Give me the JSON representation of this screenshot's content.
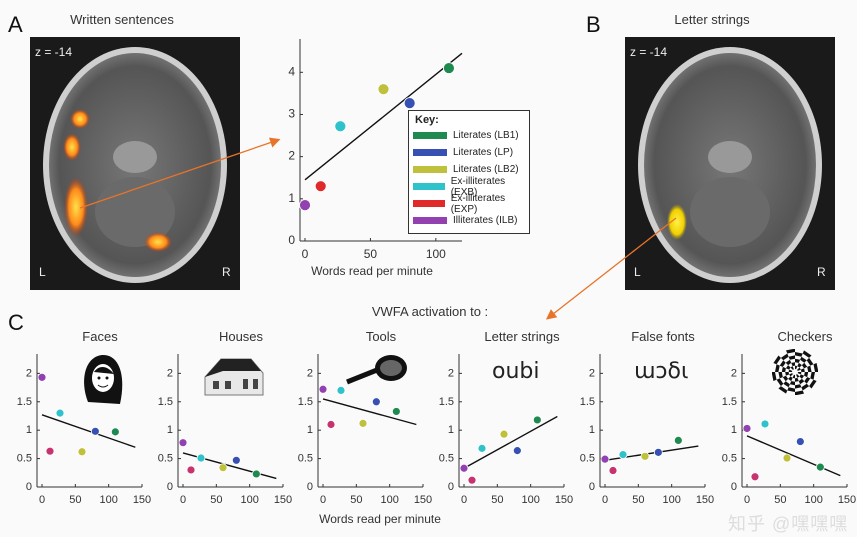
{
  "labels": {
    "a": "A",
    "b": "B",
    "c": "C"
  },
  "panel_a": {
    "title": "Written sentences",
    "slice": "z = -14",
    "left": "L",
    "right": "R"
  },
  "panel_b": {
    "title": "Letter strings",
    "slice": "z = -14",
    "left": "L",
    "right": "R"
  },
  "panel_c": {
    "title": "VWFA activation to :",
    "xlabel": "Words read per minute"
  },
  "colors": {
    "LB1": "#1f8a4f",
    "LP": "#3651b3",
    "LB2": "#bfc03c",
    "EXB": "#2fc2cb",
    "EXP": "#e02a2a",
    "ILB": "#9340b0",
    "EXP_small": "#c8326e"
  },
  "key": {
    "title": "Key:",
    "items": [
      {
        "id": "LB1",
        "label": "Literates (LB1)"
      },
      {
        "id": "LP",
        "label": "Literates (LP)"
      },
      {
        "id": "LB2",
        "label": "Literates (LB2)"
      },
      {
        "id": "EXB",
        "label": "Ex-illiterates (EXB)"
      },
      {
        "id": "EXP",
        "label": "Ex-illiterates (EXP)"
      },
      {
        "id": "ILB",
        "label": "Illiterates (ILB)"
      }
    ]
  },
  "stimulus_icons": {
    "letter_strings": "oubi",
    "false_fonts": "ɯɔδι"
  },
  "watermark": "知乎 @嘿嘿嘿",
  "chart_data": [
    {
      "type": "scatter",
      "id": "main",
      "xlabel": "Words read per minute",
      "ylabel": "",
      "xlim": [
        0,
        120
      ],
      "ylim": [
        0,
        4.6
      ],
      "xticks": [
        0,
        50,
        100
      ],
      "yticks": [
        0,
        1,
        2,
        3,
        4
      ],
      "points": [
        {
          "group": "ILB",
          "x": 0,
          "y": 0.85
        },
        {
          "group": "EXP",
          "x": 12,
          "y": 1.3
        },
        {
          "group": "EXB",
          "x": 27,
          "y": 2.72
        },
        {
          "group": "LB2",
          "x": 60,
          "y": 3.6
        },
        {
          "group": "LP",
          "x": 80,
          "y": 3.27
        },
        {
          "group": "LB1",
          "x": 110,
          "y": 4.1
        }
      ],
      "fit": [
        [
          0,
          1.45
        ],
        [
          120,
          4.45
        ]
      ]
    },
    {
      "type": "scatter",
      "id": "faces",
      "title": "Faces",
      "xlim": [
        0,
        150
      ],
      "ylim": [
        0,
        2.2
      ],
      "xticks": [
        0,
        50,
        100,
        150
      ],
      "yticks": [
        0,
        0.5,
        1,
        1.5,
        2
      ],
      "points": [
        {
          "group": "ILB",
          "x": 0,
          "y": 1.93
        },
        {
          "group": "EXP",
          "x": 12,
          "y": 0.63
        },
        {
          "group": "EXB",
          "x": 27,
          "y": 1.3
        },
        {
          "group": "LB2",
          "x": 60,
          "y": 0.62
        },
        {
          "group": "LP",
          "x": 80,
          "y": 0.98
        },
        {
          "group": "LB1",
          "x": 110,
          "y": 0.97
        }
      ],
      "fit": [
        [
          0,
          1.27
        ],
        [
          140,
          0.7
        ]
      ]
    },
    {
      "type": "scatter",
      "id": "houses",
      "title": "Houses",
      "xlim": [
        0,
        150
      ],
      "ylim": [
        0,
        2.2
      ],
      "xticks": [
        0,
        50,
        100,
        150
      ],
      "yticks": [
        0,
        0.5,
        1,
        1.5,
        2
      ],
      "points": [
        {
          "group": "ILB",
          "x": 0,
          "y": 0.78
        },
        {
          "group": "EXP",
          "x": 12,
          "y": 0.3
        },
        {
          "group": "EXB",
          "x": 27,
          "y": 0.51
        },
        {
          "group": "LB2",
          "x": 60,
          "y": 0.34
        },
        {
          "group": "LP",
          "x": 80,
          "y": 0.47
        },
        {
          "group": "LB1",
          "x": 110,
          "y": 0.23
        }
      ],
      "fit": [
        [
          0,
          0.6
        ],
        [
          140,
          0.15
        ]
      ]
    },
    {
      "type": "scatter",
      "id": "tools",
      "title": "Tools",
      "xlim": [
        0,
        150
      ],
      "ylim": [
        0,
        2.2
      ],
      "xticks": [
        0,
        50,
        100,
        150
      ],
      "yticks": [
        0,
        0.5,
        1,
        1.5,
        2
      ],
      "points": [
        {
          "group": "ILB",
          "x": 0,
          "y": 1.72
        },
        {
          "group": "EXP",
          "x": 12,
          "y": 1.1
        },
        {
          "group": "EXB",
          "x": 27,
          "y": 1.7
        },
        {
          "group": "LB2",
          "x": 60,
          "y": 1.12
        },
        {
          "group": "LP",
          "x": 80,
          "y": 1.5
        },
        {
          "group": "LB1",
          "x": 110,
          "y": 1.33
        }
      ],
      "fit": [
        [
          0,
          1.55
        ],
        [
          140,
          1.1
        ]
      ]
    },
    {
      "type": "scatter",
      "id": "letter-strings",
      "title": "Letter strings",
      "xlim": [
        0,
        150
      ],
      "ylim": [
        0,
        2.2
      ],
      "xticks": [
        0,
        50,
        100,
        150
      ],
      "yticks": [
        0,
        0.5,
        1,
        1.5,
        2
      ],
      "points": [
        {
          "group": "ILB",
          "x": 0,
          "y": 0.33
        },
        {
          "group": "EXP",
          "x": 12,
          "y": 0.12
        },
        {
          "group": "EXB",
          "x": 27,
          "y": 0.68
        },
        {
          "group": "LB2",
          "x": 60,
          "y": 0.93
        },
        {
          "group": "LP",
          "x": 80,
          "y": 0.64
        },
        {
          "group": "LB1",
          "x": 110,
          "y": 1.18
        }
      ],
      "fit": [
        [
          0,
          0.33
        ],
        [
          140,
          1.24
        ]
      ]
    },
    {
      "type": "scatter",
      "id": "false-fonts",
      "title": "False fonts",
      "xlim": [
        0,
        150
      ],
      "ylim": [
        0,
        2.2
      ],
      "xticks": [
        0,
        50,
        100,
        150
      ],
      "yticks": [
        0,
        0.5,
        1,
        1.5,
        2
      ],
      "points": [
        {
          "group": "ILB",
          "x": 0,
          "y": 0.49
        },
        {
          "group": "EXP",
          "x": 12,
          "y": 0.29
        },
        {
          "group": "EXB",
          "x": 27,
          "y": 0.57
        },
        {
          "group": "LB2",
          "x": 60,
          "y": 0.54
        },
        {
          "group": "LP",
          "x": 80,
          "y": 0.61
        },
        {
          "group": "LB1",
          "x": 110,
          "y": 0.82
        }
      ],
      "fit": [
        [
          0,
          0.47
        ],
        [
          140,
          0.72
        ]
      ]
    },
    {
      "type": "scatter",
      "id": "checkers",
      "title": "Checkers",
      "xlim": [
        0,
        150
      ],
      "ylim": [
        0,
        2.2
      ],
      "xticks": [
        0,
        50,
        100,
        150
      ],
      "yticks": [
        0,
        0.5,
        1,
        1.5,
        2
      ],
      "points": [
        {
          "group": "ILB",
          "x": 0,
          "y": 1.03
        },
        {
          "group": "EXP",
          "x": 12,
          "y": 0.18
        },
        {
          "group": "EXB",
          "x": 27,
          "y": 1.11
        },
        {
          "group": "LB2",
          "x": 60,
          "y": 0.51
        },
        {
          "group": "LP",
          "x": 80,
          "y": 0.8
        },
        {
          "group": "LB1",
          "x": 110,
          "y": 0.35
        }
      ],
      "fit": [
        [
          0,
          0.9
        ],
        [
          140,
          0.2
        ]
      ]
    }
  ]
}
